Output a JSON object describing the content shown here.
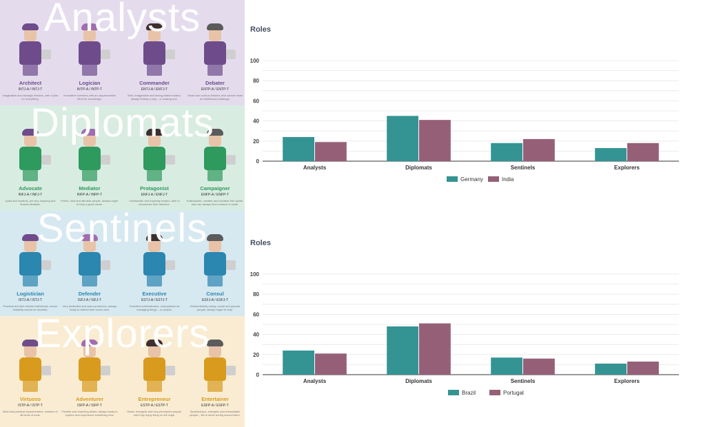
{
  "colors": {
    "series1": "#349493",
    "series2": "#956077",
    "grid": "#e6e6e6",
    "axis": "#333333"
  },
  "groups": [
    {
      "title": "Analysts",
      "bg": "#e4dced",
      "accent": "#6e4c8c",
      "characters": [
        {
          "name": "Architect",
          "code": "INTJ-A / INTJ-T",
          "desc": "Imaginative and strategic thinkers, with a plan for everything.",
          "icon": "architect-icon"
        },
        {
          "name": "Logician",
          "code": "INTP-A / INTP-T",
          "desc": "Innovative inventors with an unquenchable thirst for knowledge.",
          "icon": "logician-icon"
        },
        {
          "name": "Commander",
          "code": "ENTJ-A / ENTJ-T",
          "desc": "Bold, imaginative and strong-willed leaders, always finding a way – or making one.",
          "icon": "commander-icon"
        },
        {
          "name": "Debater",
          "code": "ENTP-A / ENTP-T",
          "desc": "Smart and curious thinkers who cannot resist an intellectual challenge.",
          "icon": "debater-icon"
        }
      ]
    },
    {
      "title": "Diplomats",
      "bg": "#d9ece2",
      "accent": "#2e9a5d",
      "characters": [
        {
          "name": "Advocate",
          "code": "INFJ-A / INFJ-T",
          "desc": "Quiet and mystical, yet very inspiring and tireless idealists.",
          "icon": "advocate-icon"
        },
        {
          "name": "Mediator",
          "code": "INFP-A / INFP-T",
          "desc": "Poetic, kind and altruistic people, always eager to help a good cause.",
          "icon": "mediator-icon"
        },
        {
          "name": "Protagonist",
          "code": "ENFJ-A / ENFJ-T",
          "desc": "Charismatic and inspiring leaders, able to mesmerize their listeners.",
          "icon": "protagonist-icon"
        },
        {
          "name": "Campaigner",
          "code": "ENFP-A / ENFP-T",
          "desc": "Enthusiastic, creative and sociable free spirits, who can always find a reason to smile.",
          "icon": "campaigner-icon"
        }
      ]
    },
    {
      "title": "Sentinels",
      "bg": "#d6e8f0",
      "accent": "#2b86b0",
      "characters": [
        {
          "name": "Logistician",
          "code": "ISTJ-A / ISTJ-T",
          "desc": "Practical and fact-minded individuals, whose reliability cannot be doubted.",
          "icon": "logistician-icon"
        },
        {
          "name": "Defender",
          "code": "ISFJ-A / ISFJ-T",
          "desc": "Very dedicated and warm protectors, always ready to defend their loved ones.",
          "icon": "defender-icon"
        },
        {
          "name": "Executive",
          "code": "ESTJ-A / ESTJ-T",
          "desc": "Excellent administrators, unsurpassed at managing things – or people.",
          "icon": "executive-icon"
        },
        {
          "name": "Consul",
          "code": "ESFJ-A / ESFJ-T",
          "desc": "Extraordinarily caring, social and popular people, always eager to help.",
          "icon": "consul-icon"
        }
      ]
    },
    {
      "title": "Explorers",
      "bg": "#f9ecd2",
      "accent": "#d89b1e",
      "characters": [
        {
          "name": "Virtuoso",
          "code": "ISTP-A / ISTP-T",
          "desc": "Bold and practical experimenters, masters of all kinds of tools.",
          "icon": "virtuoso-icon"
        },
        {
          "name": "Adventurer",
          "code": "ISFP-A / ISFP-T",
          "desc": "Flexible and charming artists, always ready to explore and experience something new.",
          "icon": "adventurer-icon"
        },
        {
          "name": "Entrepreneur",
          "code": "ESTP-A / ESTP-T",
          "desc": "Smart, energetic and very perceptive people, who truly enjoy living on the edge.",
          "icon": "entrepreneur-icon"
        },
        {
          "name": "Entertainer",
          "code": "ESFP-A / ESFP-T",
          "desc": "Spontaneous, energetic and enthusiastic people – life is never boring around them.",
          "icon": "entertainer-icon"
        }
      ]
    }
  ],
  "chart_data": [
    {
      "type": "bar",
      "title": "Roles",
      "categories": [
        "Analysts",
        "Diplomats",
        "Sentinels",
        "Explorers"
      ],
      "yticks": [
        "0",
        "20",
        "40",
        "60",
        "80",
        "100"
      ],
      "ylim": [
        0,
        100
      ],
      "grid": true,
      "legend": "bottom",
      "series": [
        {
          "name": "Germany",
          "color": "#349493",
          "values": [
            24,
            45,
            18,
            13
          ]
        },
        {
          "name": "India",
          "color": "#956077",
          "values": [
            19,
            41,
            22,
            18
          ]
        }
      ]
    },
    {
      "type": "bar",
      "title": "Roles",
      "categories": [
        "Analysts",
        "Diplomats",
        "Sentinels",
        "Explorers"
      ],
      "yticks": [
        "0",
        "20",
        "40",
        "60",
        "80",
        "100"
      ],
      "ylim": [
        0,
        100
      ],
      "grid": true,
      "legend": "bottom",
      "series": [
        {
          "name": "Brazil",
          "color": "#349493",
          "values": [
            24,
            48,
            17,
            11
          ]
        },
        {
          "name": "Portugal",
          "color": "#956077",
          "values": [
            21,
            51,
            16,
            13
          ]
        }
      ]
    }
  ]
}
